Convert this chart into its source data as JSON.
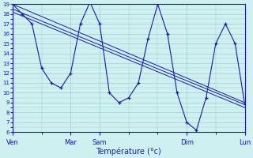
{
  "xlabel": "Température (°c)",
  "ylim": [
    6,
    19
  ],
  "yticks": [
    6,
    7,
    8,
    9,
    10,
    11,
    12,
    13,
    14,
    15,
    16,
    17,
    18,
    19
  ],
  "background_color": "#cff0f0",
  "grid_color": "#9ecece",
  "line_color": "#1a1ab0",
  "day_labels": [
    "Ven",
    "",
    "Mar",
    "Sam",
    "",
    "Dim",
    "",
    "Lun"
  ],
  "day_positions": [
    0,
    0.5,
    1.0,
    1.5,
    2.0,
    3.0,
    3.5,
    4.0
  ],
  "xlim": [
    0,
    4.0
  ],
  "xtick_labels": [
    "Ven",
    "Mar",
    "Sam",
    "Dim",
    "Lun"
  ],
  "xtick_pos": [
    0,
    1.0,
    1.5,
    3.0,
    4.0
  ],
  "series_marked": {
    "x": [
      0,
      0.167,
      0.333,
      0.5,
      0.667,
      0.833,
      1.0,
      1.167,
      1.333,
      1.5,
      1.667,
      1.833,
      2.0,
      2.167,
      2.333,
      2.5,
      2.667,
      2.833,
      3.0,
      3.167,
      3.333,
      3.5,
      3.667,
      3.833,
      4.0
    ],
    "y": [
      19,
      18,
      17,
      12.5,
      11,
      10.5,
      12,
      17,
      19.2,
      17,
      10,
      9,
      9.5,
      11,
      15.5,
      19,
      16,
      10,
      7,
      6.2,
      9.5,
      15,
      17,
      15,
      8.8
    ]
  },
  "series_lines": [
    {
      "x": [
        0,
        4.0
      ],
      "y": [
        19,
        9.0
      ]
    },
    {
      "x": [
        0,
        4.0
      ],
      "y": [
        18.5,
        8.8
      ]
    },
    {
      "x": [
        0,
        4.0
      ],
      "y": [
        18.2,
        8.5
      ]
    }
  ]
}
